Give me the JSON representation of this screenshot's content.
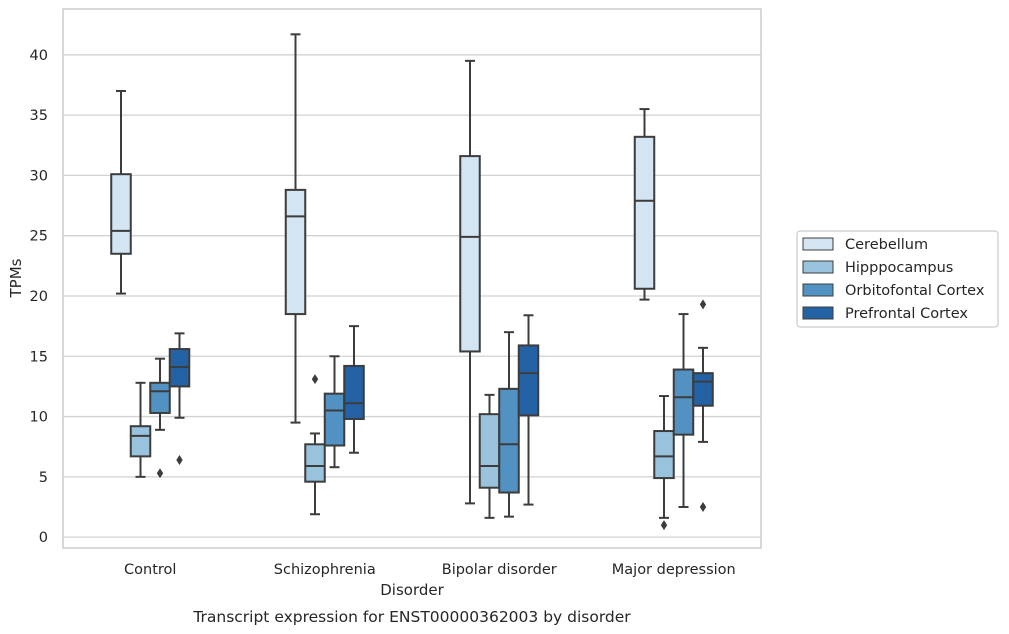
{
  "caption": "Transcript expression for ENST00000362003 by disorder",
  "chart_data": {
    "type": "boxplot",
    "title": "",
    "xlabel": "Disorder",
    "ylabel": "TPMs",
    "categories": [
      "Control",
      "Schizophrenia",
      "Bipolar disorder",
      "Major depression"
    ],
    "ylim": [
      -0.9,
      43.8
    ],
    "yticks": [
      0,
      5,
      10,
      15,
      20,
      25,
      30,
      35,
      40
    ],
    "grid": true,
    "legend_position": "right",
    "colors": {
      "Cerebellum": "#d3e4f3",
      "Hipppocampus": "#99c2dd",
      "Orbitofontal Cortex": "#5192c3",
      "Prefrontal Cortex": "#2462a6",
      "line": "#3c3c3c",
      "grid": "#d2d2d2"
    },
    "series": [
      {
        "name": "Cerebellum",
        "boxes": [
          {
            "whislo": 20.2,
            "q1": 23.5,
            "med": 25.4,
            "q3": 30.1,
            "whishi": 37.0,
            "fliers": []
          },
          {
            "whislo": 9.5,
            "q1": 18.5,
            "med": 26.6,
            "q3": 28.8,
            "whishi": 41.7,
            "fliers": []
          },
          {
            "whislo": 2.8,
            "q1": 15.4,
            "med": 24.9,
            "q3": 31.6,
            "whishi": 39.5,
            "fliers": []
          },
          {
            "whislo": 19.7,
            "q1": 20.6,
            "med": 27.9,
            "q3": 33.2,
            "whishi": 35.5,
            "fliers": []
          }
        ]
      },
      {
        "name": "Hipppocampus",
        "boxes": [
          {
            "whislo": 5.0,
            "q1": 6.7,
            "med": 8.4,
            "q3": 9.2,
            "whishi": 12.8,
            "fliers": []
          },
          {
            "whislo": 1.9,
            "q1": 4.6,
            "med": 5.9,
            "q3": 7.7,
            "whishi": 8.6,
            "fliers": [
              13.1
            ]
          },
          {
            "whislo": 1.6,
            "q1": 4.1,
            "med": 5.9,
            "q3": 10.2,
            "whishi": 11.8,
            "fliers": []
          },
          {
            "whislo": 1.6,
            "q1": 4.9,
            "med": 6.7,
            "q3": 8.8,
            "whishi": 11.7,
            "fliers": [
              1.0
            ]
          }
        ]
      },
      {
        "name": "Orbitofontal Cortex",
        "boxes": [
          {
            "whislo": 8.9,
            "q1": 10.3,
            "med": 12.1,
            "q3": 12.8,
            "whishi": 14.8,
            "fliers": [
              5.3
            ]
          },
          {
            "whislo": 5.8,
            "q1": 7.6,
            "med": 10.5,
            "q3": 11.9,
            "whishi": 15.0,
            "fliers": []
          },
          {
            "whislo": 1.7,
            "q1": 3.7,
            "med": 7.7,
            "q3": 12.3,
            "whishi": 17.0,
            "fliers": []
          },
          {
            "whislo": 2.5,
            "q1": 8.5,
            "med": 11.6,
            "q3": 13.9,
            "whishi": 18.5,
            "fliers": []
          }
        ]
      },
      {
        "name": "Prefrontal Cortex",
        "boxes": [
          {
            "whislo": 9.9,
            "q1": 12.5,
            "med": 14.1,
            "q3": 15.6,
            "whishi": 16.9,
            "fliers": [
              6.4
            ]
          },
          {
            "whislo": 7.0,
            "q1": 9.8,
            "med": 11.1,
            "q3": 14.2,
            "whishi": 17.5,
            "fliers": []
          },
          {
            "whislo": 2.7,
            "q1": 10.1,
            "med": 13.6,
            "q3": 15.9,
            "whishi": 18.4,
            "fliers": []
          },
          {
            "whislo": 7.9,
            "q1": 10.9,
            "med": 12.9,
            "q3": 13.6,
            "whishi": 15.7,
            "fliers": [
              19.3,
              2.5
            ]
          }
        ]
      }
    ]
  }
}
